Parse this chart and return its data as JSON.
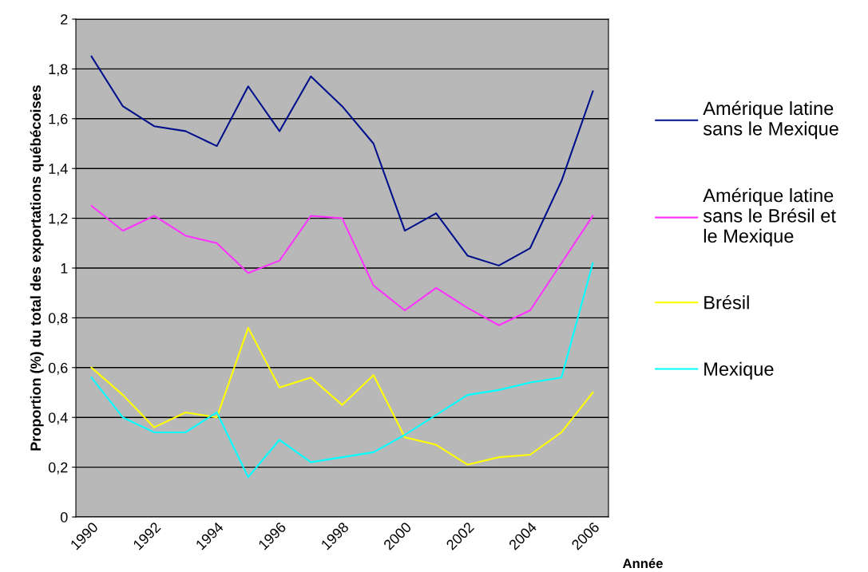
{
  "chart_data": {
    "type": "line",
    "xlabel": "Année",
    "ylabel": "Proportion (%) du total des exportations québécoises",
    "categories": [
      "1990",
      null,
      "1992",
      null,
      "1994",
      null,
      "1996",
      null,
      "1998",
      null,
      "2000",
      null,
      "2002",
      null,
      "2004",
      null,
      "2006"
    ],
    "series": [
      {
        "name": "Amérique latine\nsans le Mexique",
        "color": "#000f8c",
        "values": [
          1.85,
          1.65,
          1.57,
          1.55,
          1.49,
          1.73,
          1.55,
          1.77,
          1.65,
          1.5,
          1.15,
          1.22,
          1.05,
          1.01,
          1.08,
          1.35,
          1.71
        ]
      },
      {
        "name": "Amérique latine\nsans le Brésil et\nle Mexique",
        "color": "#ff33ff",
        "values": [
          1.25,
          1.15,
          1.21,
          1.13,
          1.1,
          0.98,
          1.03,
          1.21,
          1.2,
          0.93,
          0.83,
          0.92,
          0.84,
          0.77,
          0.83,
          1.02,
          1.21
        ]
      },
      {
        "name": "Brésil",
        "color": "#ffff00",
        "values": [
          0.6,
          0.49,
          0.36,
          0.42,
          0.4,
          0.76,
          0.52,
          0.56,
          0.45,
          0.57,
          0.32,
          0.29,
          0.21,
          0.24,
          0.25,
          0.34,
          0.5
        ]
      },
      {
        "name": "Mexique",
        "color": "#00ffff",
        "values": [
          0.56,
          0.4,
          0.34,
          0.34,
          0.42,
          0.16,
          0.31,
          0.22,
          0.24,
          0.26,
          0.33,
          0.41,
          0.49,
          0.51,
          0.54,
          0.56,
          1.02
        ]
      }
    ],
    "ylim": [
      0,
      2
    ],
    "yticks": [
      0,
      {
        "value": 0.2,
        "label": "0,2"
      },
      {
        "value": 0.4,
        "label": "0,4"
      },
      {
        "value": 0.6,
        "label": "0,6"
      },
      {
        "value": 0.8,
        "label": "0,8"
      },
      1,
      {
        "value": 1.2,
        "label": "1,2"
      },
      {
        "value": 1.4,
        "label": "1,4"
      },
      {
        "value": 1.6,
        "label": "1,6"
      },
      {
        "value": 1.8,
        "label": "1,8"
      },
      2
    ],
    "grid": "y",
    "legend": "right",
    "marker": "none",
    "line_style": "solid"
  }
}
